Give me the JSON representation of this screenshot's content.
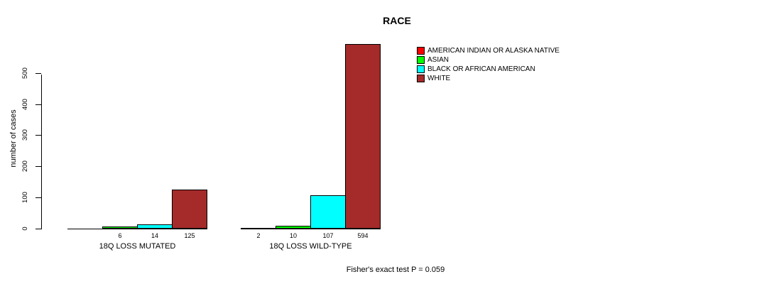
{
  "page": {
    "background": "#FFFFFF"
  },
  "chart_data": {
    "type": "bar",
    "title": "RACE",
    "xlabel": "",
    "ylabel": "number of cases",
    "ylim": [
      0,
      500
    ],
    "yticks": [
      0,
      100,
      200,
      300,
      400,
      500
    ],
    "grid": false,
    "legend_position": "top-right",
    "bar_outline_color": "#000000",
    "categories": [
      "18Q LOSS MUTATED",
      "18Q LOSS WILD-TYPE"
    ],
    "series": [
      {
        "name": "AMERICAN INDIAN OR ALASKA NATIVE",
        "color": "#FF0000",
        "values": [
          0,
          2
        ]
      },
      {
        "name": "ASIAN",
        "color": "#00FF00",
        "values": [
          6,
          10
        ]
      },
      {
        "name": "BLACK OR AFRICAN AMERICAN",
        "color": "#00FFFF",
        "values": [
          14,
          107
        ]
      },
      {
        "name": "WHITE",
        "color": "#A52A2A",
        "values": [
          125,
          594
        ]
      }
    ],
    "bar_value_labels": [
      [
        "",
        "6",
        "14",
        "125"
      ],
      [
        "2",
        "10",
        "107",
        "594"
      ]
    ],
    "annotation": "Fisher's exact test P = 0.059"
  }
}
